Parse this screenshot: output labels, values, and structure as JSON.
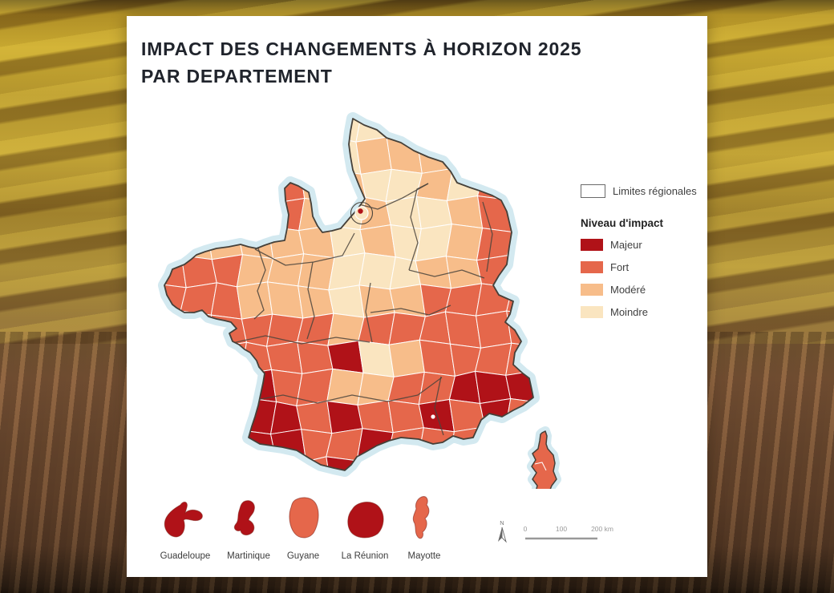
{
  "title": {
    "line1": "IMPACT DES CHANGEMENTS À HORIZON 2025",
    "line2": "PAR DEPARTEMENT"
  },
  "legend": {
    "limites_label": "Limites régionales",
    "impact_title": "Niveau d'impact",
    "levels": [
      {
        "label": "Majeur",
        "color": "#b01218"
      },
      {
        "label": "Fort",
        "color": "#e5674b"
      },
      {
        "label": "Modéré",
        "color": "#f7bd8a"
      },
      {
        "label": "Moindre",
        "color": "#fae5c0"
      }
    ]
  },
  "map": {
    "class_colors": {
      "1": "#b01218",
      "2": "#e5674b",
      "3": "#f7bd8a",
      "4": "#fae5c0"
    },
    "sea_halo_color": "#cfe7ef",
    "outline_color": "#454039",
    "region_border_color": "#4a443c",
    "department_border_color": "#ffffff",
    "grid": [
      "44444444444444",
      "44444443334444",
      "44442334434244",
      "44432343443224",
      "23333343443224",
      "22233344433224",
      "22233343322224",
      "22222232222224",
      "22222214322224",
      "22212233221114",
      "22211212212124",
      "22211221222224",
      "22222211222444"
    ]
  },
  "territories": [
    {
      "name": "Guadeloupe",
      "level": "Majeur",
      "class": "1"
    },
    {
      "name": "Martinique",
      "level": "Majeur",
      "class": "1"
    },
    {
      "name": "Guyane",
      "level": "Fort",
      "class": "2"
    },
    {
      "name": "La Réunion",
      "level": "Majeur",
      "class": "1"
    },
    {
      "name": "Mayotte",
      "level": "Fort",
      "class": "2"
    }
  ],
  "scale_bar": {
    "north_label": "N",
    "ticks": [
      "0",
      "100",
      "200 km"
    ]
  }
}
